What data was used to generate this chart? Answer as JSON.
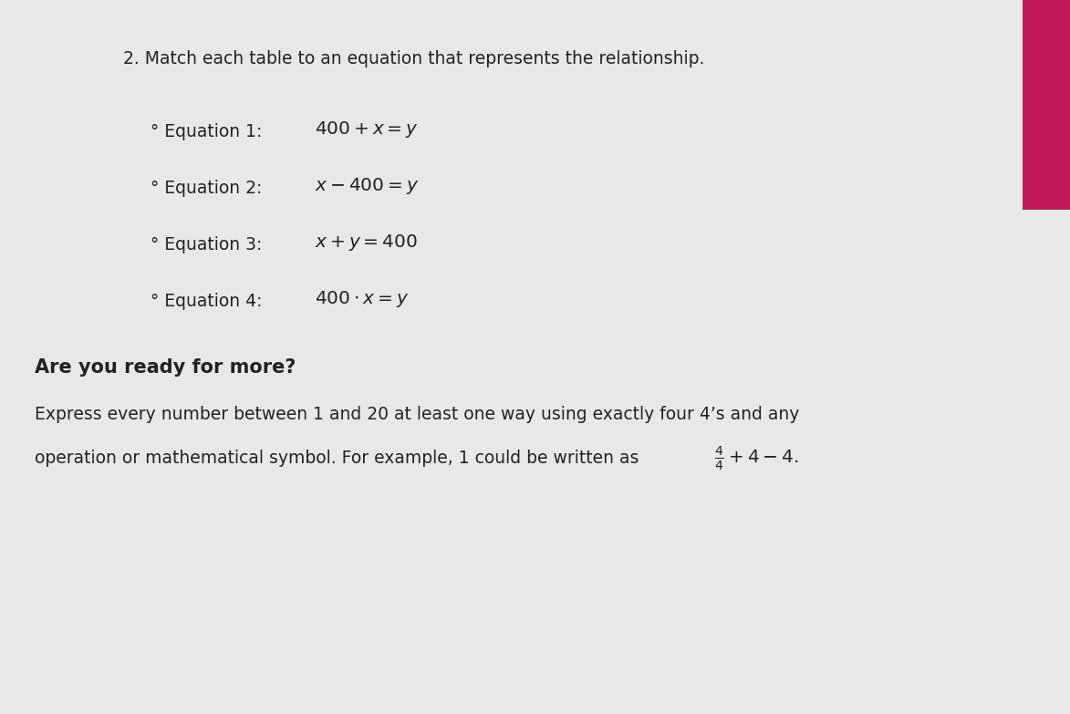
{
  "title": "2. Match each table to an equation that represents the relationship.",
  "eq_prefix": [
    "° Equation 1: ",
    "° Equation 2: ",
    "° Equation 3: ",
    "° Equation 4: "
  ],
  "eq_math": [
    "$400 + x = y$",
    "$x - 400 = y$",
    "$x + y = 400$",
    "$400 \\cdot x = y$"
  ],
  "bold_heading": "Are you ready for more?",
  "body_line1": "Express every number between 1 and 20 at least one way using exactly four 4’s and any",
  "body_line2_text": "operation or mathematical symbol. For example, 1 could be written as ",
  "body_line2_math": "$\\frac{4}{4} + 4 - 4$.",
  "bg_color": "#e8e8e8",
  "text_color": "#222222",
  "title_fontsize": 13.5,
  "eq_fontsize": 13.5,
  "heading_fontsize": 15,
  "body_fontsize": 13.5,
  "pink_color": "#c2185b"
}
